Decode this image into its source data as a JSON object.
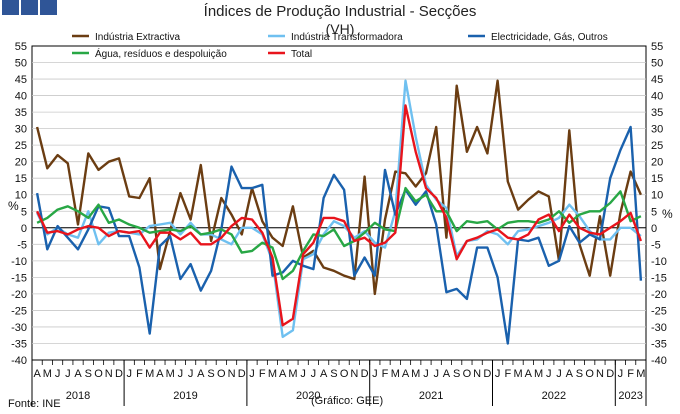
{
  "title": "Índices de Produção Industrial - Secções",
  "subtitle": "(VH)",
  "source": "Fonte: INE",
  "credit": "(Gráfico: GEE)",
  "chart_data": {
    "type": "line",
    "title": "Índices de Produção Industrial - Secções",
    "subtitle": "(VH)",
    "ylabel_left": "%",
    "ylabel_right": "%",
    "ylim": [
      -40,
      55
    ],
    "yticks": [
      -40,
      -35,
      -30,
      -25,
      -20,
      -15,
      -10,
      -5,
      0,
      5,
      10,
      15,
      20,
      25,
      30,
      35,
      40,
      45,
      50,
      55
    ],
    "grid": true,
    "legend_position": "top",
    "x": [
      "A",
      "M",
      "J",
      "J",
      "A",
      "S",
      "O",
      "N",
      "D",
      "J",
      "F",
      "M",
      "A",
      "M",
      "J",
      "J",
      "A",
      "S",
      "O",
      "N",
      "D",
      "J",
      "F",
      "M",
      "A",
      "M",
      "J",
      "J",
      "A",
      "S",
      "O",
      "N",
      "D",
      "J",
      "F",
      "M",
      "A",
      "M",
      "J",
      "J",
      "A",
      "S",
      "O",
      "N",
      "D",
      "J",
      "F",
      "M",
      "A",
      "M",
      "J",
      "J",
      "A",
      "S",
      "O",
      "N",
      "D",
      "J",
      "F",
      "M"
    ],
    "years": [
      {
        "label": "2018",
        "from": 0,
        "to": 8
      },
      {
        "label": "2019",
        "from": 9,
        "to": 20
      },
      {
        "label": "2020",
        "from": 21,
        "to": 32
      },
      {
        "label": "2021",
        "from": 33,
        "to": 44
      },
      {
        "label": "2022",
        "from": 45,
        "to": 56
      },
      {
        "label": "2023",
        "from": 57,
        "to": 59
      }
    ],
    "series": [
      {
        "name": "Indústria Extractiva",
        "color": "#6b3d12",
        "values": [
          30.5,
          18,
          22,
          19.5,
          1,
          22.5,
          17.5,
          20,
          21,
          9.5,
          9,
          15,
          -12.5,
          -1,
          10.5,
          2.5,
          19,
          -4,
          9,
          4,
          -2,
          12,
          2,
          -3,
          -5.5,
          6.5,
          -9,
          -7,
          -12,
          -13,
          -14.5,
          -15.5,
          15.5,
          -20,
          2.5,
          17,
          16.5,
          12.5,
          16.5,
          30.5,
          -3,
          43,
          23,
          30.5,
          22.5,
          44.5,
          14,
          5.5,
          8.5,
          11,
          9.5,
          -10,
          29.5,
          -5,
          -14.5,
          3.5,
          -14.5,
          4.5,
          17,
          10
        ]
      },
      {
        "name": "Indústria Transformadora",
        "color": "#6fc0f0",
        "values": [
          4.5,
          -2,
          0,
          -2,
          -3,
          5,
          -5,
          -1.5,
          -1,
          -1.5,
          -2,
          0.5,
          1,
          1.5,
          -2,
          1.5,
          -2,
          -2,
          -3.5,
          -5,
          0,
          0,
          -2,
          -10,
          -33,
          -31,
          -9.5,
          -8,
          -2,
          2,
          0.5,
          -3,
          -1,
          -4.5,
          -6,
          5,
          44.5,
          27.5,
          13,
          8.5,
          6,
          -8.5,
          -4,
          -3.5,
          -1,
          -2,
          -5,
          -1,
          -0.5,
          0.5,
          1.5,
          3,
          7,
          3.5,
          -1,
          -3.5,
          -3.5,
          0,
          0,
          -2.5
        ]
      },
      {
        "name": "Electricidade, Gás, Outros",
        "color": "#1a61ad",
        "values": [
          10.5,
          -6.5,
          0.5,
          -3,
          -6.5,
          -0.5,
          6.5,
          6,
          -2.5,
          -2.5,
          -12,
          -32,
          -5.5,
          -2.5,
          -15.5,
          -11,
          -19,
          -13,
          -0.5,
          18.5,
          12,
          12,
          13,
          -14.5,
          -13.5,
          -10,
          -11.5,
          -12.5,
          9,
          16,
          11.5,
          -14.5,
          -9,
          -14.5,
          17.5,
          4,
          11.5,
          7,
          11,
          1,
          -19.5,
          -18.5,
          -21.5,
          -6,
          -6,
          -15,
          -35,
          -3.5,
          -4,
          -3,
          -11.5,
          -10,
          0.5,
          -4.5,
          -2,
          -3.5,
          15,
          23.5,
          30.5,
          -16
        ]
      },
      {
        "name": "Água, resíduos e despoluição",
        "color": "#28a745",
        "values": [
          1.5,
          3,
          5.5,
          6.5,
          5,
          3,
          7,
          1.5,
          2.5,
          1,
          0,
          -1.5,
          -1,
          -0.5,
          -1,
          0.5,
          -2,
          -1.5,
          -0.5,
          -2,
          -7.5,
          -7,
          -4.5,
          -6,
          -15.5,
          -13,
          -7,
          -2,
          -2.5,
          -0.5,
          -5.5,
          -4,
          -1.5,
          1.5,
          -0.5,
          -1,
          12,
          8,
          10,
          5,
          5,
          -1,
          2,
          1.5,
          2,
          -0.5,
          1.5,
          2,
          2,
          1.5,
          2.5,
          5,
          1.5,
          4,
          5,
          5,
          7.5,
          11,
          2,
          3.5
        ]
      },
      {
        "name": "Total",
        "color": "#e8141c",
        "values": [
          5,
          -1.5,
          -1,
          -2,
          -0.5,
          0.5,
          0,
          -2.5,
          -1,
          -1.5,
          -1,
          -6,
          -1.5,
          -1.5,
          -3.5,
          -1.5,
          -5,
          -5,
          -3,
          0.5,
          3,
          2.5,
          -1.5,
          -9,
          -29.5,
          -27.5,
          -8,
          -4.5,
          3,
          3,
          2,
          -4,
          -3,
          -5.5,
          -4.5,
          -1.5,
          37,
          23,
          12,
          9,
          3,
          -9.5,
          -4,
          -3,
          -1.5,
          -0.5,
          -3,
          -3.5,
          -2,
          2.5,
          4,
          -1,
          4,
          0,
          -1.5,
          -2,
          0,
          2,
          4.5,
          -4
        ]
      }
    ]
  }
}
